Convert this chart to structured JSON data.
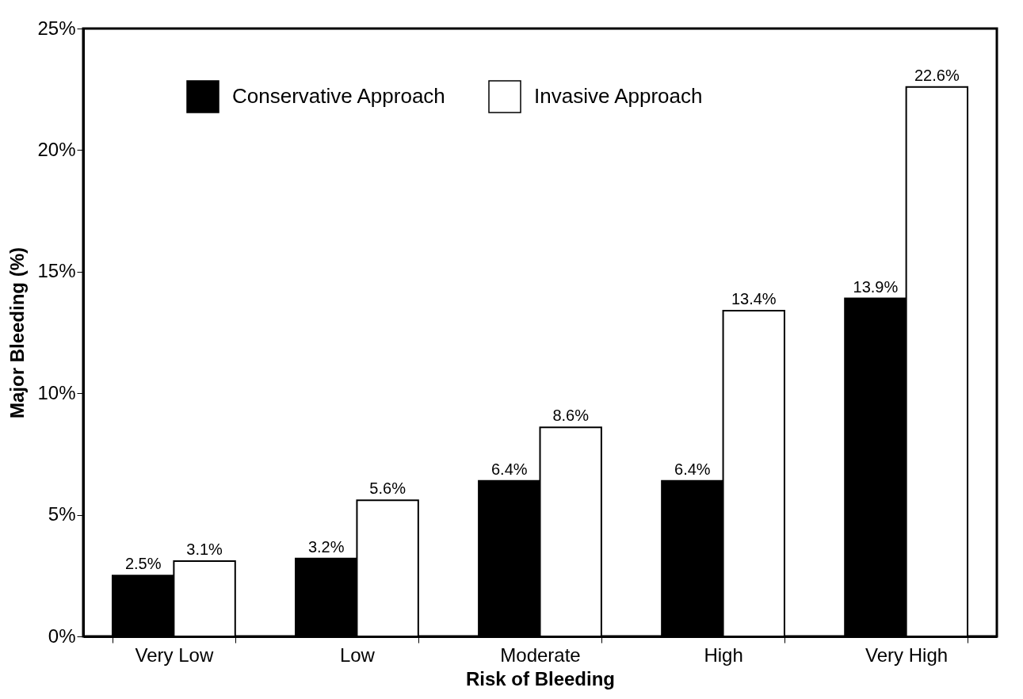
{
  "chart_data": {
    "type": "bar",
    "xlabel": "Risk of Bleeding",
    "ylabel": "Major Bleeding (%)",
    "categories": [
      "Very Low",
      "Low",
      "Moderate",
      "High",
      "Very High"
    ],
    "series": [
      {
        "name": "Conservative Approach",
        "color": "#000000",
        "values": [
          2.5,
          3.2,
          6.4,
          6.4,
          13.9
        ],
        "value_labels": [
          "2.5%",
          "3.2%",
          "6.4%",
          "6.4%",
          "13.9%"
        ]
      },
      {
        "name": "Invasive Approach",
        "color": "#ffffff",
        "values": [
          3.1,
          5.6,
          8.6,
          13.4,
          22.6
        ],
        "value_labels": [
          "3.1%",
          "5.6%",
          "8.6%",
          "13.4%",
          "22.6%"
        ]
      }
    ],
    "ylim": [
      0,
      25
    ],
    "yticks": [
      {
        "value": 0,
        "label": "0%"
      },
      {
        "value": 5,
        "label": "5%"
      },
      {
        "value": 10,
        "label": "10%"
      },
      {
        "value": 15,
        "label": "15%"
      },
      {
        "value": 20,
        "label": "20%"
      },
      {
        "value": 25,
        "label": "25%"
      }
    ],
    "grid": false,
    "legend": "top left"
  }
}
